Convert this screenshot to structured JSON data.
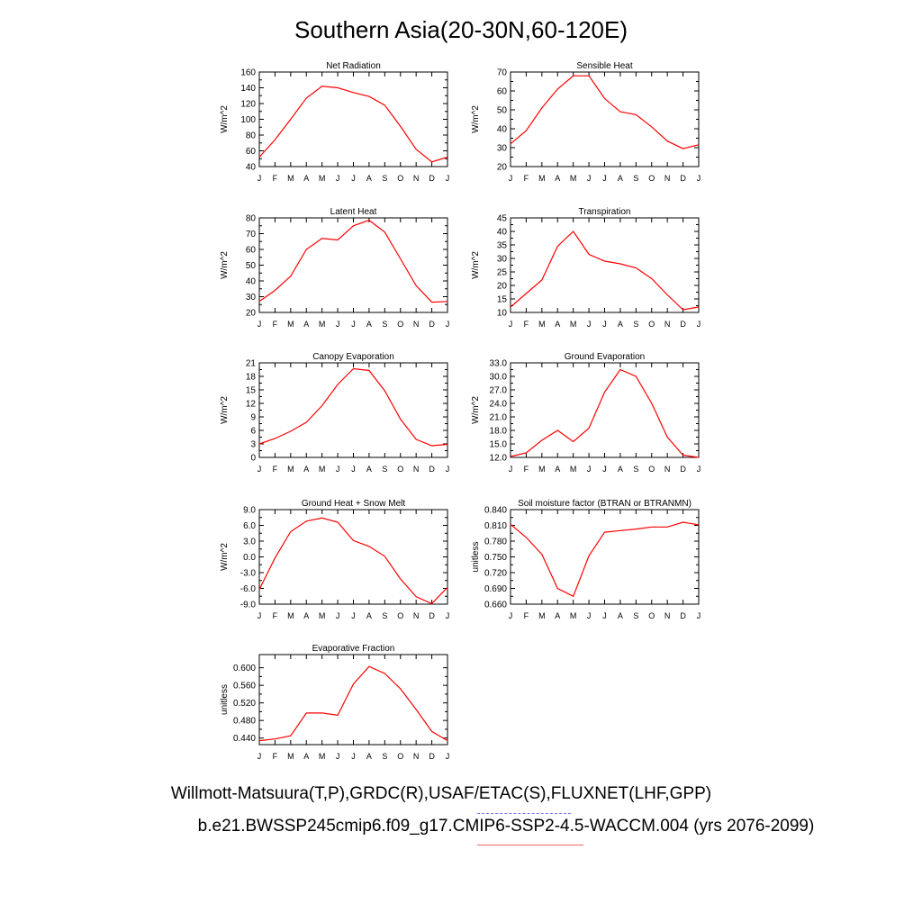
{
  "page": {
    "title": "Southern Asia(20-30N,60-120E)",
    "footer_obs": "Willmott-Matsuura(T,P),GRDC(R),USAF/ETAC(S),FLUXNET(LHF,GPP)",
    "footer_case": "b.e21.BWSSP245cmip6.f09_g17.CMIP6-SSP2-4.5-WACCM.004 (yrs 2076-2099)",
    "obs_line_color": "#7777ee",
    "case_line_color": "#ee6666"
  },
  "chart_data": [
    {
      "type": "line",
      "title": "Net Radiation",
      "ylabel": "W/m^2",
      "categories": [
        "J",
        "F",
        "M",
        "A",
        "M",
        "J",
        "J",
        "A",
        "S",
        "O",
        "N",
        "D",
        "J"
      ],
      "ylim": [
        40,
        160
      ],
      "yticks": [
        "40",
        "60",
        "80",
        "100",
        "120",
        "140",
        "160"
      ],
      "series": [
        {
          "values": [
            52,
            74,
            100,
            127,
            142,
            140,
            134,
            129,
            118,
            91,
            62,
            46,
            52
          ],
          "color": "#ff0000"
        }
      ]
    },
    {
      "type": "line",
      "title": "Sensible Heat",
      "ylabel": "W/m^2",
      "categories": [
        "J",
        "F",
        "M",
        "A",
        "M",
        "J",
        "J",
        "A",
        "S",
        "O",
        "N",
        "D",
        "J"
      ],
      "ylim": [
        20,
        70
      ],
      "yticks": [
        "20",
        "30",
        "40",
        "50",
        "60",
        "70"
      ],
      "series": [
        {
          "values": [
            32,
            39,
            51,
            61,
            68,
            68,
            56,
            49,
            47.5,
            41,
            33.5,
            29.5,
            31.5
          ],
          "color": "#ff0000"
        }
      ]
    },
    {
      "type": "line",
      "title": "Latent Heat",
      "ylabel": "W/m^2",
      "categories": [
        "J",
        "F",
        "M",
        "A",
        "M",
        "J",
        "J",
        "A",
        "S",
        "O",
        "N",
        "D",
        "J"
      ],
      "ylim": [
        20,
        80
      ],
      "yticks": [
        "20",
        "30",
        "40",
        "50",
        "60",
        "70",
        "80"
      ],
      "series": [
        {
          "values": [
            27,
            34,
            43,
            60,
            67,
            66,
            75,
            78.5,
            71,
            54,
            37,
            26.5,
            27
          ],
          "color": "#ff0000"
        }
      ]
    },
    {
      "type": "line",
      "title": "Transpiration",
      "ylabel": "W/m^2",
      "categories": [
        "J",
        "F",
        "M",
        "A",
        "M",
        "J",
        "J",
        "A",
        "S",
        "O",
        "N",
        "D",
        "J"
      ],
      "ylim": [
        10,
        45
      ],
      "yticks": [
        "10",
        "15",
        "20",
        "25",
        "30",
        "35",
        "40",
        "45"
      ],
      "series": [
        {
          "values": [
            12,
            17,
            22,
            34.5,
            40,
            31.5,
            29,
            28,
            26.5,
            22.5,
            16.5,
            11,
            12
          ],
          "color": "#ff0000"
        }
      ]
    },
    {
      "type": "line",
      "title": "Canopy Evaporation",
      "ylabel": "W/m^2",
      "categories": [
        "J",
        "F",
        "M",
        "A",
        "M",
        "J",
        "J",
        "A",
        "S",
        "O",
        "N",
        "D",
        "J"
      ],
      "ylim": [
        0,
        21
      ],
      "yticks": [
        "0",
        "3",
        "6",
        "9",
        "12",
        "15",
        "18",
        "21"
      ],
      "series": [
        {
          "values": [
            3,
            4.2,
            5.8,
            7.8,
            11.5,
            16.2,
            19.7,
            19.3,
            14.8,
            8.5,
            4,
            2.6,
            2.9
          ],
          "color": "#ff0000"
        }
      ]
    },
    {
      "type": "line",
      "title": "Ground Evaporation",
      "ylabel": "W/m^2",
      "categories": [
        "J",
        "F",
        "M",
        "A",
        "M",
        "J",
        "J",
        "A",
        "S",
        "O",
        "N",
        "D",
        "J"
      ],
      "ylim": [
        12.0,
        33.0
      ],
      "yticks": [
        "12.0",
        "15.0",
        "18.0",
        "21.0",
        "24.0",
        "27.0",
        "30.0",
        "33.0"
      ],
      "series": [
        {
          "values": [
            12.2,
            13.0,
            15.8,
            18.0,
            15.5,
            18.5,
            26.5,
            31.5,
            30.0,
            24.0,
            16.5,
            12.5,
            12.0
          ],
          "color": "#ff0000"
        }
      ]
    },
    {
      "type": "line",
      "title": "Ground Heat + Snow Melt",
      "ylabel": "W/m^2",
      "categories": [
        "J",
        "F",
        "M",
        "A",
        "M",
        "J",
        "J",
        "A",
        "S",
        "O",
        "N",
        "D",
        "J"
      ],
      "ylim": [
        -9.0,
        9.0
      ],
      "yticks": [
        "-9.0",
        "-6.0",
        "-3.0",
        "0.0",
        "3.0",
        "6.0",
        "9.0"
      ],
      "series": [
        {
          "values": [
            -6.2,
            -0.2,
            4.8,
            6.8,
            7.4,
            6.6,
            3.1,
            2.0,
            0.1,
            -4.2,
            -7.6,
            -8.9,
            -5.8
          ],
          "color": "#ff0000"
        }
      ]
    },
    {
      "type": "line",
      "title": "Soil moisture factor (BTRAN or BTRANMN)",
      "ylabel": "unitless",
      "categories": [
        "J",
        "F",
        "M",
        "A",
        "M",
        "J",
        "J",
        "A",
        "S",
        "O",
        "N",
        "D",
        "J"
      ],
      "ylim": [
        0.66,
        0.84
      ],
      "yticks": [
        "0.660",
        "0.690",
        "0.720",
        "0.750",
        "0.780",
        "0.810",
        "0.840"
      ],
      "series": [
        {
          "values": [
            0.812,
            0.787,
            0.755,
            0.69,
            0.675,
            0.752,
            0.797,
            0.8,
            0.803,
            0.807,
            0.807,
            0.816,
            0.811
          ],
          "color": "#ff0000"
        }
      ]
    },
    {
      "type": "line",
      "title": "Evaporative Fraction",
      "ylabel": "unitless",
      "categories": [
        "J",
        "F",
        "M",
        "A",
        "M",
        "J",
        "J",
        "A",
        "S",
        "O",
        "N",
        "D",
        "J"
      ],
      "ylim": [
        0.425,
        0.63
      ],
      "yticks": [
        "0.440",
        "0.480",
        "0.520",
        "0.560",
        "0.600"
      ],
      "series": [
        {
          "values": [
            0.434,
            0.438,
            0.445,
            0.497,
            0.497,
            0.492,
            0.563,
            0.603,
            0.587,
            0.552,
            0.505,
            0.455,
            0.434
          ],
          "color": "#ff0000"
        }
      ]
    }
  ]
}
